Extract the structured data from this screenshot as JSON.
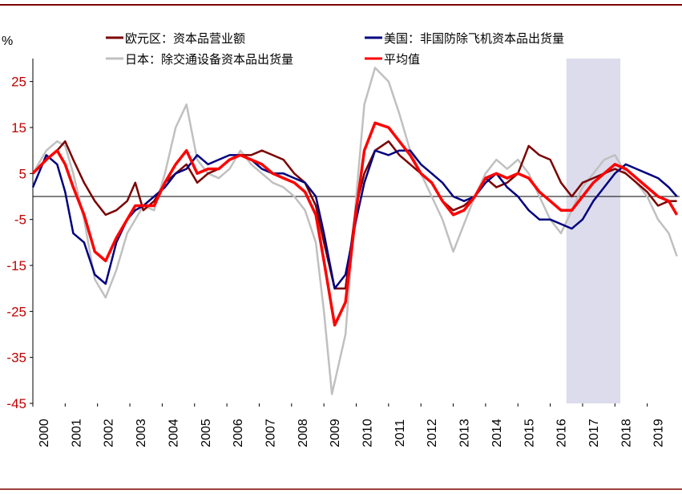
{
  "chart_data": {
    "type": "line",
    "ylabel": "%",
    "ylim": [
      -45,
      30
    ],
    "y_ticks": [
      25,
      15,
      5,
      -5,
      -15,
      -25,
      -35,
      -45
    ],
    "y_tick_labels": [
      "25",
      "15",
      "5",
      "-5",
      "-15",
      "-25",
      "-35",
      "-45"
    ],
    "x_tick_labels": [
      "2000",
      "2001",
      "2002",
      "2003",
      "2004",
      "2005",
      "2006",
      "2007",
      "2008",
      "2009",
      "2010",
      "2011",
      "2012",
      "2013",
      "2014",
      "2015",
      "2016",
      "2017",
      "2018",
      "2019"
    ],
    "xlim": [
      "2000-01",
      "2019-12"
    ],
    "shaded_region": {
      "start": "2016-07",
      "end": "2018-03",
      "color": "#dcdcec"
    },
    "colors": {
      "eurozone": "#7b0000",
      "us": "#00007f",
      "japan": "#c0c0c0",
      "average": "#ff0000",
      "frame": "#7b0000"
    },
    "series": [
      {
        "name": "欧元区：资本品营业额",
        "color": "#7b0000",
        "points": [
          [
            "2000-01",
            5
          ],
          [
            "2000-06",
            8
          ],
          [
            "2000-10",
            10
          ],
          [
            "2001-01",
            12
          ],
          [
            "2001-04",
            8
          ],
          [
            "2001-08",
            3
          ],
          [
            "2001-12",
            -1
          ],
          [
            "2002-04",
            -4
          ],
          [
            "2002-08",
            -3
          ],
          [
            "2002-12",
            -1
          ],
          [
            "2003-03",
            3
          ],
          [
            "2003-06",
            -3
          ],
          [
            "2003-10",
            -1
          ],
          [
            "2004-02",
            3
          ],
          [
            "2004-06",
            5
          ],
          [
            "2004-10",
            7
          ],
          [
            "2005-02",
            3
          ],
          [
            "2005-06",
            5
          ],
          [
            "2005-10",
            6
          ],
          [
            "2006-02",
            8
          ],
          [
            "2006-06",
            9
          ],
          [
            "2006-10",
            9
          ],
          [
            "2007-02",
            10
          ],
          [
            "2007-06",
            9
          ],
          [
            "2007-10",
            8
          ],
          [
            "2008-02",
            5
          ],
          [
            "2008-06",
            3
          ],
          [
            "2008-10",
            -2
          ],
          [
            "2009-01",
            -10
          ],
          [
            "2009-05",
            -20
          ],
          [
            "2009-09",
            -20
          ],
          [
            "2010-01",
            -2
          ],
          [
            "2010-04",
            5
          ],
          [
            "2010-08",
            10
          ],
          [
            "2011-01",
            12
          ],
          [
            "2011-05",
            9
          ],
          [
            "2011-09",
            7
          ],
          [
            "2012-01",
            5
          ],
          [
            "2012-05",
            3
          ],
          [
            "2012-09",
            -1
          ],
          [
            "2013-01",
            -3
          ],
          [
            "2013-05",
            -2
          ],
          [
            "2013-09",
            0
          ],
          [
            "2014-01",
            4
          ],
          [
            "2014-05",
            2
          ],
          [
            "2014-09",
            3
          ],
          [
            "2015-01",
            5
          ],
          [
            "2015-05",
            11
          ],
          [
            "2015-09",
            9
          ],
          [
            "2016-01",
            8
          ],
          [
            "2016-05",
            3
          ],
          [
            "2016-09",
            0
          ],
          [
            "2017-01",
            3
          ],
          [
            "2017-05",
            4
          ],
          [
            "2017-09",
            5
          ],
          [
            "2018-01",
            6
          ],
          [
            "2018-05",
            5
          ],
          [
            "2018-09",
            3
          ],
          [
            "2019-01",
            1
          ],
          [
            "2019-05",
            -2
          ],
          [
            "2019-09",
            -1
          ],
          [
            "2019-12",
            -1
          ]
        ]
      },
      {
        "name": "美国：非国防除飞机资本品出货量",
        "color": "#00007f",
        "points": [
          [
            "2000-01",
            2
          ],
          [
            "2000-06",
            9
          ],
          [
            "2000-10",
            7
          ],
          [
            "2001-01",
            1
          ],
          [
            "2001-04",
            -8
          ],
          [
            "2001-08",
            -10
          ],
          [
            "2001-12",
            -17
          ],
          [
            "2002-04",
            -19
          ],
          [
            "2002-08",
            -10
          ],
          [
            "2002-12",
            -5
          ],
          [
            "2003-03",
            -3
          ],
          [
            "2003-06",
            -2
          ],
          [
            "2003-10",
            0
          ],
          [
            "2004-02",
            2
          ],
          [
            "2004-06",
            5
          ],
          [
            "2004-10",
            6
          ],
          [
            "2005-02",
            9
          ],
          [
            "2005-06",
            7
          ],
          [
            "2005-10",
            8
          ],
          [
            "2006-02",
            9
          ],
          [
            "2006-06",
            9
          ],
          [
            "2006-10",
            8
          ],
          [
            "2007-02",
            6
          ],
          [
            "2007-06",
            5
          ],
          [
            "2007-10",
            5
          ],
          [
            "2008-02",
            4
          ],
          [
            "2008-06",
            3
          ],
          [
            "2008-10",
            0
          ],
          [
            "2009-01",
            -8
          ],
          [
            "2009-05",
            -20
          ],
          [
            "2009-09",
            -17
          ],
          [
            "2010-01",
            -5
          ],
          [
            "2010-04",
            3
          ],
          [
            "2010-08",
            10
          ],
          [
            "2011-01",
            9
          ],
          [
            "2011-05",
            10
          ],
          [
            "2011-09",
            10
          ],
          [
            "2012-01",
            7
          ],
          [
            "2012-05",
            5
          ],
          [
            "2012-09",
            3
          ],
          [
            "2013-01",
            0
          ],
          [
            "2013-05",
            -1
          ],
          [
            "2013-09",
            0
          ],
          [
            "2014-01",
            3
          ],
          [
            "2014-05",
            5
          ],
          [
            "2014-09",
            2
          ],
          [
            "2015-01",
            0
          ],
          [
            "2015-05",
            -3
          ],
          [
            "2015-09",
            -5
          ],
          [
            "2016-01",
            -5
          ],
          [
            "2016-05",
            -6
          ],
          [
            "2016-09",
            -7
          ],
          [
            "2017-01",
            -5
          ],
          [
            "2017-05",
            -1
          ],
          [
            "2017-09",
            2
          ],
          [
            "2018-01",
            5
          ],
          [
            "2018-05",
            7
          ],
          [
            "2018-09",
            6
          ],
          [
            "2019-01",
            5
          ],
          [
            "2019-05",
            4
          ],
          [
            "2019-09",
            2
          ],
          [
            "2019-12",
            0
          ]
        ]
      },
      {
        "name": "日本：除交通设备资本品出货量",
        "color": "#c0c0c0",
        "points": [
          [
            "2000-01",
            5
          ],
          [
            "2000-06",
            10
          ],
          [
            "2000-10",
            12
          ],
          [
            "2001-01",
            11
          ],
          [
            "2001-04",
            5
          ],
          [
            "2001-08",
            -5
          ],
          [
            "2001-12",
            -18
          ],
          [
            "2002-04",
            -22
          ],
          [
            "2002-08",
            -16
          ],
          [
            "2002-12",
            -8
          ],
          [
            "2003-03",
            -5
          ],
          [
            "2003-06",
            -2
          ],
          [
            "2003-10",
            -3
          ],
          [
            "2004-02",
            5
          ],
          [
            "2004-06",
            15
          ],
          [
            "2004-10",
            20
          ],
          [
            "2005-02",
            8
          ],
          [
            "2005-06",
            5
          ],
          [
            "2005-10",
            4
          ],
          [
            "2006-02",
            6
          ],
          [
            "2006-06",
            10
          ],
          [
            "2006-10",
            7
          ],
          [
            "2007-02",
            5
          ],
          [
            "2007-06",
            3
          ],
          [
            "2007-10",
            2
          ],
          [
            "2008-02",
            0
          ],
          [
            "2008-06",
            -3
          ],
          [
            "2008-10",
            -10
          ],
          [
            "2009-01",
            -25
          ],
          [
            "2009-04",
            -43
          ],
          [
            "2009-09",
            -30
          ],
          [
            "2010-01",
            0
          ],
          [
            "2010-04",
            20
          ],
          [
            "2010-08",
            28
          ],
          [
            "2011-01",
            25
          ],
          [
            "2011-05",
            18
          ],
          [
            "2011-09",
            10
          ],
          [
            "2012-01",
            5
          ],
          [
            "2012-05",
            0
          ],
          [
            "2012-09",
            -5
          ],
          [
            "2013-01",
            -12
          ],
          [
            "2013-05",
            -6
          ],
          [
            "2013-09",
            0
          ],
          [
            "2014-01",
            5
          ],
          [
            "2014-05",
            8
          ],
          [
            "2014-09",
            6
          ],
          [
            "2015-01",
            8
          ],
          [
            "2015-05",
            5
          ],
          [
            "2015-09",
            0
          ],
          [
            "2016-01",
            -5
          ],
          [
            "2016-05",
            -8
          ],
          [
            "2016-09",
            -3
          ],
          [
            "2017-01",
            2
          ],
          [
            "2017-05",
            5
          ],
          [
            "2017-09",
            8
          ],
          [
            "2018-01",
            9
          ],
          [
            "2018-05",
            5
          ],
          [
            "2018-09",
            3
          ],
          [
            "2019-01",
            0
          ],
          [
            "2019-05",
            -5
          ],
          [
            "2019-09",
            -8
          ],
          [
            "2019-12",
            -13
          ]
        ]
      },
      {
        "name": "平均值",
        "color": "#ff0000",
        "points": [
          [
            "2000-01",
            5
          ],
          [
            "2000-06",
            8
          ],
          [
            "2000-10",
            10
          ],
          [
            "2001-01",
            7
          ],
          [
            "2001-04",
            2
          ],
          [
            "2001-08",
            -4
          ],
          [
            "2001-12",
            -12
          ],
          [
            "2002-04",
            -14
          ],
          [
            "2002-08",
            -9
          ],
          [
            "2002-12",
            -5
          ],
          [
            "2003-03",
            -2
          ],
          [
            "2003-06",
            -2
          ],
          [
            "2003-10",
            -2
          ],
          [
            "2004-02",
            3
          ],
          [
            "2004-06",
            7
          ],
          [
            "2004-10",
            10
          ],
          [
            "2005-02",
            5
          ],
          [
            "2005-06",
            6
          ],
          [
            "2005-10",
            6
          ],
          [
            "2006-02",
            8
          ],
          [
            "2006-06",
            9
          ],
          [
            "2006-10",
            8
          ],
          [
            "2007-02",
            7
          ],
          [
            "2007-06",
            5
          ],
          [
            "2007-10",
            4
          ],
          [
            "2008-02",
            3
          ],
          [
            "2008-06",
            1
          ],
          [
            "2008-10",
            -4
          ],
          [
            "2009-01",
            -14
          ],
          [
            "2009-05",
            -28
          ],
          [
            "2009-09",
            -23
          ],
          [
            "2010-01",
            -3
          ],
          [
            "2010-04",
            10
          ],
          [
            "2010-08",
            16
          ],
          [
            "2011-01",
            15
          ],
          [
            "2011-05",
            12
          ],
          [
            "2011-09",
            9
          ],
          [
            "2012-01",
            5
          ],
          [
            "2012-05",
            3
          ],
          [
            "2012-09",
            -1
          ],
          [
            "2013-01",
            -4
          ],
          [
            "2013-05",
            -3
          ],
          [
            "2013-09",
            0
          ],
          [
            "2014-01",
            4
          ],
          [
            "2014-05",
            5
          ],
          [
            "2014-09",
            4
          ],
          [
            "2015-01",
            5
          ],
          [
            "2015-05",
            4
          ],
          [
            "2015-09",
            1
          ],
          [
            "2016-01",
            -1
          ],
          [
            "2016-05",
            -3
          ],
          [
            "2016-09",
            -3
          ],
          [
            "2017-01",
            0
          ],
          [
            "2017-05",
            3
          ],
          [
            "2017-09",
            5
          ],
          [
            "2018-01",
            7
          ],
          [
            "2018-05",
            6
          ],
          [
            "2018-09",
            4
          ],
          [
            "2019-01",
            2
          ],
          [
            "2019-05",
            0
          ],
          [
            "2019-09",
            -1
          ],
          [
            "2019-12",
            -4
          ]
        ]
      }
    ]
  }
}
